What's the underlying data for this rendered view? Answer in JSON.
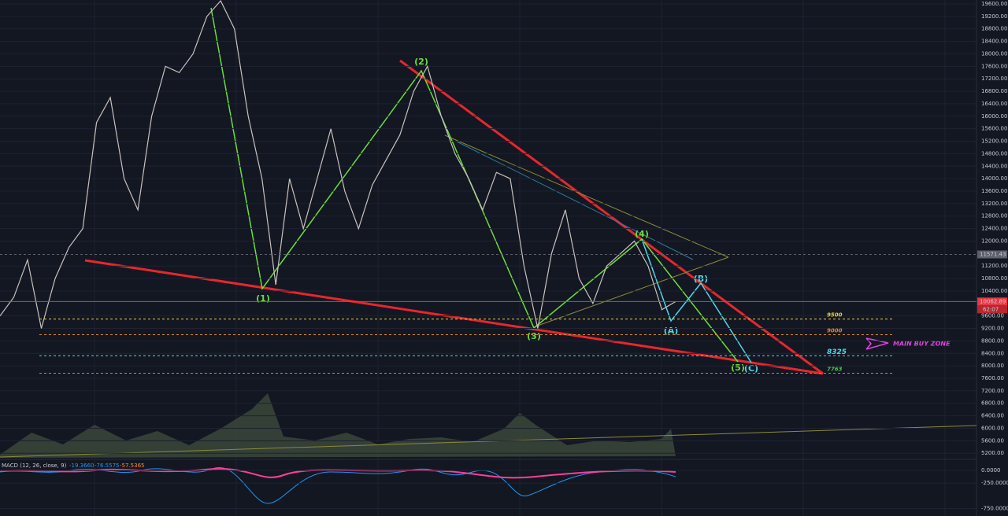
{
  "chart_data": {
    "type": "line",
    "values": [
      9600,
      10200,
      11400,
      9200,
      10800,
      11800,
      12400,
      15800,
      16600,
      14000,
      13000,
      16000,
      17600,
      17400,
      18000,
      19200,
      19700,
      18800,
      16000,
      14000,
      10600,
      14000,
      12400,
      14000,
      15600,
      13600,
      12400,
      13800,
      14600,
      15400,
      16800,
      17600,
      16000,
      14800,
      14000,
      13000,
      14200,
      14000,
      11200,
      9200,
      11600,
      13000,
      10800,
      10000,
      11200,
      11600,
      12000,
      11200,
      9800,
      10060
    ],
    "color": "#c9c2bd",
    "ylim": [
      5029,
      19726
    ],
    "yticks": [
      {
        "value": 5200,
        "label": "5200.00"
      },
      {
        "value": 5600,
        "label": "5600.00"
      },
      {
        "value": 6000,
        "label": "6000.00"
      },
      {
        "value": 6400,
        "label": "6400.00"
      },
      {
        "value": 6800,
        "label": "6800.00"
      },
      {
        "value": 7200,
        "label": "7200.00"
      },
      {
        "value": 7600,
        "label": "7600.00"
      },
      {
        "value": 8000,
        "label": "8000.00"
      },
      {
        "value": 8400,
        "label": "8400.00"
      },
      {
        "value": 8800,
        "label": "8800.00"
      },
      {
        "value": 9200,
        "label": "9200.00"
      },
      {
        "value": 9600,
        "label": "9600.00"
      },
      {
        "value": 10400,
        "label": "10400.00"
      },
      {
        "value": 10800,
        "label": "10800.00"
      },
      {
        "value": 11200,
        "label": "11200.00"
      },
      {
        "value": 12000,
        "label": "12000.00"
      },
      {
        "value": 12400,
        "label": "12400.00"
      },
      {
        "value": 12800,
        "label": "12800.00"
      },
      {
        "value": 13200,
        "label": "13200.00"
      },
      {
        "value": 13600,
        "label": "13600.00"
      },
      {
        "value": 14000,
        "label": "14000.00"
      },
      {
        "value": 14400,
        "label": "14400.00"
      },
      {
        "value": 14800,
        "label": "14800.00"
      },
      {
        "value": 15200,
        "label": "15200.00"
      },
      {
        "value": 15600,
        "label": "15600.00"
      },
      {
        "value": 16000,
        "label": "16000.00"
      },
      {
        "value": 16400,
        "label": "16400.00"
      },
      {
        "value": 16800,
        "label": "16800.00"
      },
      {
        "value": 17200,
        "label": "17200.00"
      },
      {
        "value": 17600,
        "label": "17600.00"
      },
      {
        "value": 18000,
        "label": "18000.00"
      },
      {
        "value": 18400,
        "label": "18400.00"
      },
      {
        "value": 18800,
        "label": "18800.00"
      },
      {
        "value": 19200,
        "label": "19200.00"
      },
      {
        "value": 19600,
        "label": "19600.00"
      }
    ],
    "levels": [
      {
        "value": 9500,
        "label": "9500",
        "color": "#e6d14a"
      },
      {
        "value": 9000,
        "label": "9000",
        "color": "#e0882f"
      },
      {
        "value": 8325,
        "label": "8325",
        "color": "#4fd8e8"
      },
      {
        "value": 7763,
        "label": "7763",
        "color": "#4fc24f"
      }
    ],
    "price_tags": [
      {
        "value": 11571.43,
        "label": "11571.43",
        "color": "#5d606b"
      },
      {
        "value": 10062.89,
        "label": "10062.89",
        "color": "#e53945"
      }
    ],
    "countdown": "62:07",
    "waves": [
      "(1)",
      "(2)",
      "(3)",
      "(4)",
      "(5)",
      "(A)",
      "(B)",
      "(C)"
    ],
    "zone_label": "MAIN BUY ZONE",
    "macd": {
      "title": "MACD (12, 26, close, 9)",
      "readings": [
        "-19.3660",
        "-76.5575",
        "-57.5365"
      ],
      "ylim": [
        -898,
        203
      ],
      "yticks": [
        {
          "value": 0,
          "label": "0.0000"
        },
        {
          "value": -250,
          "label": "-250.0000"
        },
        {
          "value": -750,
          "label": "-750.0000"
        }
      ]
    }
  }
}
